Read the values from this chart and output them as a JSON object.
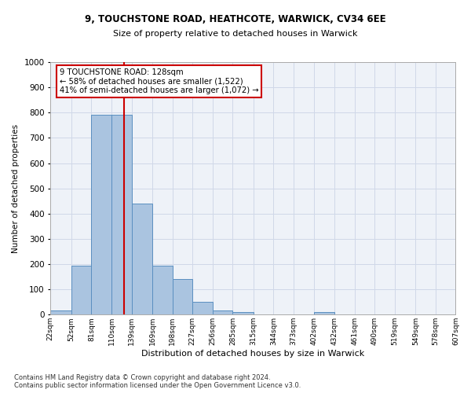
{
  "title1": "9, TOUCHSTONE ROAD, HEATHCOTE, WARWICK, CV34 6EE",
  "title2": "Size of property relative to detached houses in Warwick",
  "xlabel": "Distribution of detached houses by size in Warwick",
  "ylabel": "Number of detached properties",
  "bin_edges": [
    22,
    52,
    81,
    110,
    139,
    169,
    198,
    227,
    256,
    285,
    315,
    344,
    373,
    402,
    432,
    461,
    490,
    519,
    549,
    578,
    607
  ],
  "bar_heights": [
    15,
    195,
    790,
    790,
    440,
    195,
    140,
    50,
    15,
    10,
    0,
    0,
    0,
    10,
    0,
    0,
    0,
    0,
    0,
    0
  ],
  "bar_color": "#aac4e0",
  "bar_edge_color": "#5a8fc0",
  "grid_color": "#d0d8e8",
  "background_color": "#eef2f8",
  "vline_x": 128,
  "vline_color": "#cc0000",
  "annotation_text": "9 TOUCHSTONE ROAD: 128sqm\n← 58% of detached houses are smaller (1,522)\n41% of semi-detached houses are larger (1,072) →",
  "annotation_box_color": "#cc0000",
  "annotation_bg": "#ffffff",
  "ylim": [
    0,
    1000
  ],
  "yticks": [
    0,
    100,
    200,
    300,
    400,
    500,
    600,
    700,
    800,
    900,
    1000
  ],
  "footer": "Contains HM Land Registry data © Crown copyright and database right 2024.\nContains public sector information licensed under the Open Government Licence v3.0.",
  "tick_labels": [
    "22sqm",
    "52sqm",
    "81sqm",
    "110sqm",
    "139sqm",
    "169sqm",
    "198sqm",
    "227sqm",
    "256sqm",
    "285sqm",
    "315sqm",
    "344sqm",
    "373sqm",
    "402sqm",
    "432sqm",
    "461sqm",
    "490sqm",
    "519sqm",
    "549sqm",
    "578sqm",
    "607sqm"
  ]
}
